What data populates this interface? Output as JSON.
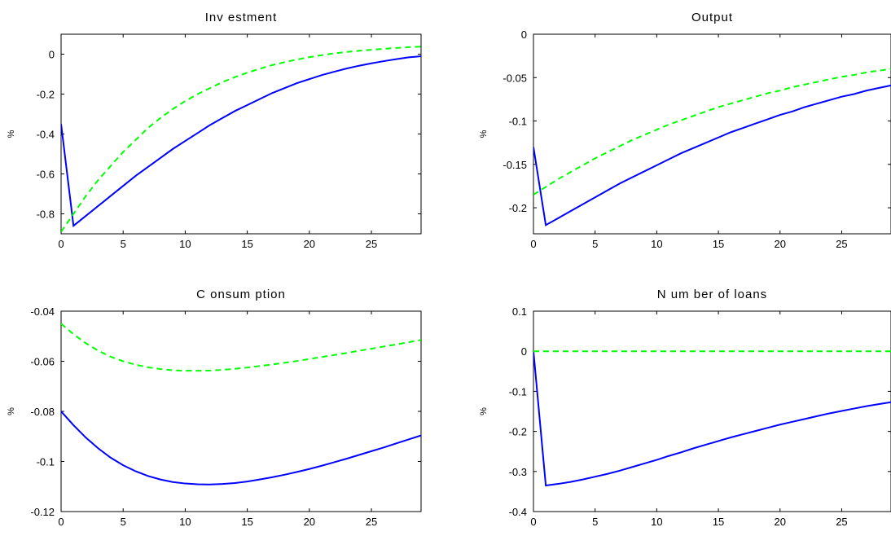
{
  "chart_data": [
    {
      "type": "line",
      "title": "Inv estment",
      "xlabel": "",
      "ylabel": "%",
      "xlim": [
        0,
        29
      ],
      "ylim": [
        -0.9,
        0.1
      ],
      "xticks": [
        0,
        5,
        10,
        15,
        20,
        25
      ],
      "yticks": [
        0,
        -0.2,
        -0.4,
        -0.6,
        -0.8
      ],
      "ytick_labels": [
        "0",
        "-0.2",
        "-0.4",
        "-0.6",
        "-0.8"
      ],
      "grid": false,
      "series": [
        {
          "color": "#0000ff",
          "style": "solid",
          "x": [
            0,
            1,
            2,
            3,
            4,
            5,
            6,
            7,
            8,
            9,
            10,
            11,
            12,
            13,
            14,
            15,
            16,
            17,
            18,
            19,
            20,
            21,
            22,
            23,
            24,
            25,
            26,
            27,
            28,
            29
          ],
          "y": [
            -0.35,
            -0.86,
            -0.81,
            -0.76,
            -0.71,
            -0.66,
            -0.61,
            -0.565,
            -0.52,
            -0.475,
            -0.435,
            -0.395,
            -0.355,
            -0.32,
            -0.285,
            -0.255,
            -0.225,
            -0.195,
            -0.17,
            -0.145,
            -0.125,
            -0.105,
            -0.088,
            -0.072,
            -0.058,
            -0.046,
            -0.035,
            -0.025,
            -0.016,
            -0.01
          ]
        },
        {
          "color": "#00ff00",
          "style": "dashed",
          "x": [
            0,
            1,
            2,
            3,
            4,
            5,
            6,
            7,
            8,
            9,
            10,
            11,
            12,
            13,
            14,
            15,
            16,
            17,
            18,
            19,
            20,
            21,
            22,
            23,
            24,
            25,
            26,
            27,
            28,
            29
          ],
          "y": [
            -0.89,
            -0.8,
            -0.71,
            -0.63,
            -0.56,
            -0.49,
            -0.43,
            -0.37,
            -0.32,
            -0.275,
            -0.235,
            -0.2,
            -0.17,
            -0.14,
            -0.115,
            -0.093,
            -0.073,
            -0.055,
            -0.04,
            -0.027,
            -0.015,
            -0.005,
            0.004,
            0.011,
            0.017,
            0.022,
            0.027,
            0.031,
            0.035,
            0.038
          ]
        }
      ]
    },
    {
      "type": "line",
      "title": "Output",
      "xlabel": "",
      "ylabel": "%",
      "xlim": [
        0,
        29
      ],
      "ylim": [
        -0.23,
        0
      ],
      "xticks": [
        0,
        5,
        10,
        15,
        20,
        25
      ],
      "yticks": [
        0,
        -0.05,
        -0.1,
        -0.15,
        -0.2
      ],
      "ytick_labels": [
        "0",
        "-0.05",
        "-0.1",
        "-0.15",
        "-0.2"
      ],
      "grid": false,
      "series": [
        {
          "color": "#0000ff",
          "style": "solid",
          "x": [
            0,
            1,
            2,
            3,
            4,
            5,
            6,
            7,
            8,
            9,
            10,
            11,
            12,
            13,
            14,
            15,
            16,
            17,
            18,
            19,
            20,
            21,
            22,
            23,
            24,
            25,
            26,
            27,
            28,
            29
          ],
          "y": [
            -0.13,
            -0.22,
            -0.212,
            -0.204,
            -0.196,
            -0.188,
            -0.18,
            -0.172,
            -0.165,
            -0.158,
            -0.151,
            -0.144,
            -0.137,
            -0.131,
            -0.125,
            -0.119,
            -0.113,
            -0.108,
            -0.103,
            -0.098,
            -0.093,
            -0.089,
            -0.084,
            -0.08,
            -0.076,
            -0.072,
            -0.069,
            -0.065,
            -0.062,
            -0.059
          ]
        },
        {
          "color": "#00ff00",
          "style": "dashed",
          "x": [
            0,
            1,
            2,
            3,
            4,
            5,
            6,
            7,
            8,
            9,
            10,
            11,
            12,
            13,
            14,
            15,
            16,
            17,
            18,
            19,
            20,
            21,
            22,
            23,
            24,
            25,
            26,
            27,
            28,
            29
          ],
          "y": [
            -0.185,
            -0.176,
            -0.167,
            -0.159,
            -0.151,
            -0.143,
            -0.136,
            -0.129,
            -0.122,
            -0.116,
            -0.11,
            -0.104,
            -0.099,
            -0.094,
            -0.089,
            -0.084,
            -0.08,
            -0.076,
            -0.072,
            -0.068,
            -0.065,
            -0.061,
            -0.058,
            -0.055,
            -0.052,
            -0.049,
            -0.047,
            -0.044,
            -0.042,
            -0.04
          ]
        }
      ]
    },
    {
      "type": "line",
      "title": "C onsum ption",
      "xlabel": "",
      "ylabel": "%",
      "xlim": [
        0,
        29
      ],
      "ylim": [
        -0.12,
        -0.04
      ],
      "xticks": [
        0,
        5,
        10,
        15,
        20,
        25
      ],
      "yticks": [
        -0.04,
        -0.06,
        -0.08,
        -0.1,
        -0.12
      ],
      "ytick_labels": [
        "-0.04",
        "-0.06",
        "-0.08",
        "-0.1",
        "-0.12"
      ],
      "grid": false,
      "series": [
        {
          "color": "#0000ff",
          "style": "solid",
          "x": [
            0,
            1,
            2,
            3,
            4,
            5,
            6,
            7,
            8,
            9,
            10,
            11,
            12,
            13,
            14,
            15,
            16,
            17,
            18,
            19,
            20,
            21,
            22,
            23,
            24,
            25,
            26,
            27,
            28,
            29
          ],
          "y": [
            -0.08,
            -0.0855,
            -0.0905,
            -0.0948,
            -0.0985,
            -0.1015,
            -0.1039,
            -0.1058,
            -0.1072,
            -0.1082,
            -0.1088,
            -0.1091,
            -0.1092,
            -0.109,
            -0.1086,
            -0.108,
            -0.1072,
            -0.1063,
            -0.1053,
            -0.1042,
            -0.103,
            -0.1017,
            -0.1003,
            -0.0989,
            -0.0974,
            -0.0959,
            -0.0944,
            -0.0928,
            -0.0912,
            -0.0896
          ]
        },
        {
          "color": "#00ff00",
          "style": "dashed",
          "x": [
            0,
            1,
            2,
            3,
            4,
            5,
            6,
            7,
            8,
            9,
            10,
            11,
            12,
            13,
            14,
            15,
            16,
            17,
            18,
            19,
            20,
            21,
            22,
            23,
            24,
            25,
            26,
            27,
            28,
            29
          ],
          "y": [
            -0.045,
            -0.0492,
            -0.0528,
            -0.0558,
            -0.0582,
            -0.06,
            -0.0614,
            -0.0624,
            -0.0631,
            -0.0636,
            -0.0638,
            -0.0638,
            -0.0637,
            -0.0634,
            -0.063,
            -0.0625,
            -0.0619,
            -0.0613,
            -0.0606,
            -0.0599,
            -0.0591,
            -0.0583,
            -0.0575,
            -0.0567,
            -0.0558,
            -0.055,
            -0.0541,
            -0.0533,
            -0.0524,
            -0.0515
          ]
        }
      ]
    },
    {
      "type": "line",
      "title": "N um ber of  loans",
      "xlabel": "",
      "ylabel": "%",
      "xlim": [
        0,
        29
      ],
      "ylim": [
        -0.4,
        0.1
      ],
      "xticks": [
        0,
        5,
        10,
        15,
        20,
        25
      ],
      "yticks": [
        0.1,
        0,
        -0.1,
        -0.2,
        -0.3,
        -0.4
      ],
      "ytick_labels": [
        "0.1",
        "0",
        "-0.1",
        "-0.2",
        "-0.3",
        "-0.4"
      ],
      "grid": false,
      "series": [
        {
          "color": "#0000ff",
          "style": "solid",
          "x": [
            0,
            1,
            2,
            3,
            4,
            5,
            6,
            7,
            8,
            9,
            10,
            11,
            12,
            13,
            14,
            15,
            16,
            17,
            18,
            19,
            20,
            21,
            22,
            23,
            24,
            25,
            26,
            27,
            28,
            29
          ],
          "y": [
            0,
            -0.335,
            -0.331,
            -0.326,
            -0.32,
            -0.313,
            -0.306,
            -0.298,
            -0.289,
            -0.28,
            -0.271,
            -0.261,
            -0.252,
            -0.242,
            -0.233,
            -0.224,
            -0.215,
            -0.207,
            -0.199,
            -0.191,
            -0.183,
            -0.176,
            -0.169,
            -0.162,
            -0.155,
            -0.149,
            -0.143,
            -0.137,
            -0.132,
            -0.127
          ]
        },
        {
          "color": "#00ff00",
          "style": "dashed",
          "x": [
            0,
            1,
            2,
            3,
            4,
            5,
            6,
            7,
            8,
            9,
            10,
            11,
            12,
            13,
            14,
            15,
            16,
            17,
            18,
            19,
            20,
            21,
            22,
            23,
            24,
            25,
            26,
            27,
            28,
            29
          ],
          "y": [
            0,
            0,
            0,
            0,
            0,
            0,
            0,
            0,
            0,
            0,
            0,
            0,
            0,
            0,
            0,
            0,
            0,
            0,
            0,
            0,
            0,
            0,
            0,
            0,
            0,
            0,
            0,
            0,
            0,
            0
          ]
        }
      ]
    }
  ]
}
